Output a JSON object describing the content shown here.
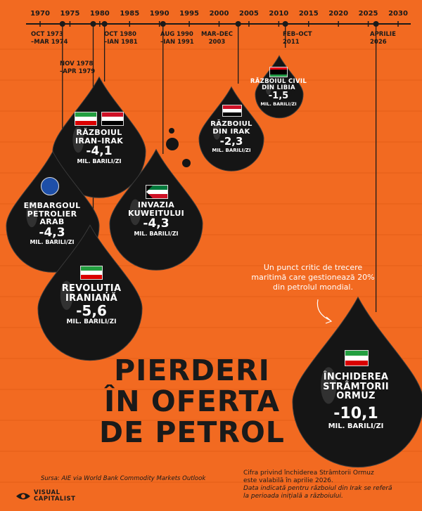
{
  "chart_data": {
    "type": "timeline",
    "title": [
      "PIERDERI",
      "ÎN OFERTA",
      "DE PETROL"
    ],
    "axis_ticks": [
      "1970",
      "1975",
      "1980",
      "1985",
      "1990",
      "1995",
      "2000",
      "2005",
      "2010",
      "2015",
      "2020",
      "2025",
      "2030"
    ],
    "events": [
      {
        "name": "EMBARGOUL PETROLIER ARAB",
        "date_label": "OCT 1973 –MAR 1974",
        "year": 1973.75,
        "value": -4.3,
        "value_label": "-4,3",
        "unit": "MIL. BARILI/ZI"
      },
      {
        "name": "REVOLUȚIA IRANIANĂ",
        "date_label": "NOV 1978 –APR 1979",
        "year": 1978.9,
        "value": -5.6,
        "value_label": "-5,6",
        "unit": "MIL. BARILI/ZI"
      },
      {
        "name": "RĂZBOIUL IRAN–IRAK",
        "date_label": "OCT 1980 –IAN 1981",
        "year": 1980.8,
        "value": -4.1,
        "value_label": "-4,1",
        "unit": "MIL. BARILI/ZI"
      },
      {
        "name": "INVAZIA KUWEITULUI",
        "date_label": "AUG 1990 –IAN 1991",
        "year": 1990.6,
        "value": -4.3,
        "value_label": "-4,3",
        "unit": "MIL. BARILI/ZI"
      },
      {
        "name": "RĂZBOIUL DIN IRAK",
        "date_label": "MAR–DEC 2003",
        "year": 2003.2,
        "value": -2.3,
        "value_label": "-2,3",
        "unit": "MIL. BARILI/ZI"
      },
      {
        "name": "RĂZBOIUL CIVIL DIN LIBIA",
        "date_label": "FEB–OCT 2011",
        "year": 2011.1,
        "value": -1.5,
        "value_label": "-1,5",
        "unit": "MIL. BARILI/ZI"
      },
      {
        "name": "ÎNCHIDEREA STRÂMTORII ORMUZ",
        "date_label": "APRILIE 2026",
        "year": 2026.3,
        "value": -10.1,
        "value_label": "-10,1",
        "unit": "MIL. BARILI/ZI"
      }
    ],
    "annotation": "Un punct critic de trecere maritimă care gestionează 20% din petrolul mondial.",
    "colors": {
      "background": "#f26a21",
      "drop": "#151515",
      "text": "#1a1a1a"
    }
  },
  "labels": {
    "embargo": {
      "name": [
        "EMBARGOUL",
        "PETROLIER",
        "ARAB"
      ],
      "date": [
        "OCT 1973",
        "–MAR 1974"
      ]
    },
    "iran_rev": {
      "name": [
        "REVOLUȚIA",
        "IRANIANĂ"
      ],
      "date": [
        "NOV 1978",
        "–APR 1979"
      ]
    },
    "iran_iraq": {
      "name": [
        "RĂZBOIUL",
        "IRAN–IRAK"
      ],
      "date": [
        "OCT 1980",
        "–IAN 1981"
      ]
    },
    "kuwait": {
      "name": [
        "INVAZIA",
        "KUWEITULUI"
      ],
      "date": [
        "AUG 1990",
        "–IAN 1991"
      ]
    },
    "iraq": {
      "name": [
        "RĂZBOIUL",
        "DIN IRAK"
      ],
      "date": [
        "MAR–DEC",
        "2003"
      ]
    },
    "libya": {
      "name": [
        "RĂZBOIUL CIVIL",
        "DIN LIBIA"
      ],
      "date": [
        "FEB–OCT",
        "2011"
      ]
    },
    "hormuz": {
      "name": [
        "ÎNCHIDEREA",
        "STRÂMTORII",
        "ORMUZ"
      ],
      "date": [
        "APRILIE",
        "2026"
      ]
    }
  },
  "footer": {
    "source": "Sursa: AIE via World Bank Commodity Markets Outlook",
    "note_line1": "Cifra privind închiderea Strâmtorii Ormuz",
    "note_line2": "este valabilă în aprilie 2026.",
    "note_line3": "Data indicată pentru războiul din Irak se referă",
    "note_line4": "la perioada inițială a războiului.",
    "brand_line1": "VISUAL",
    "brand_line2": "CAPITALIST"
  }
}
